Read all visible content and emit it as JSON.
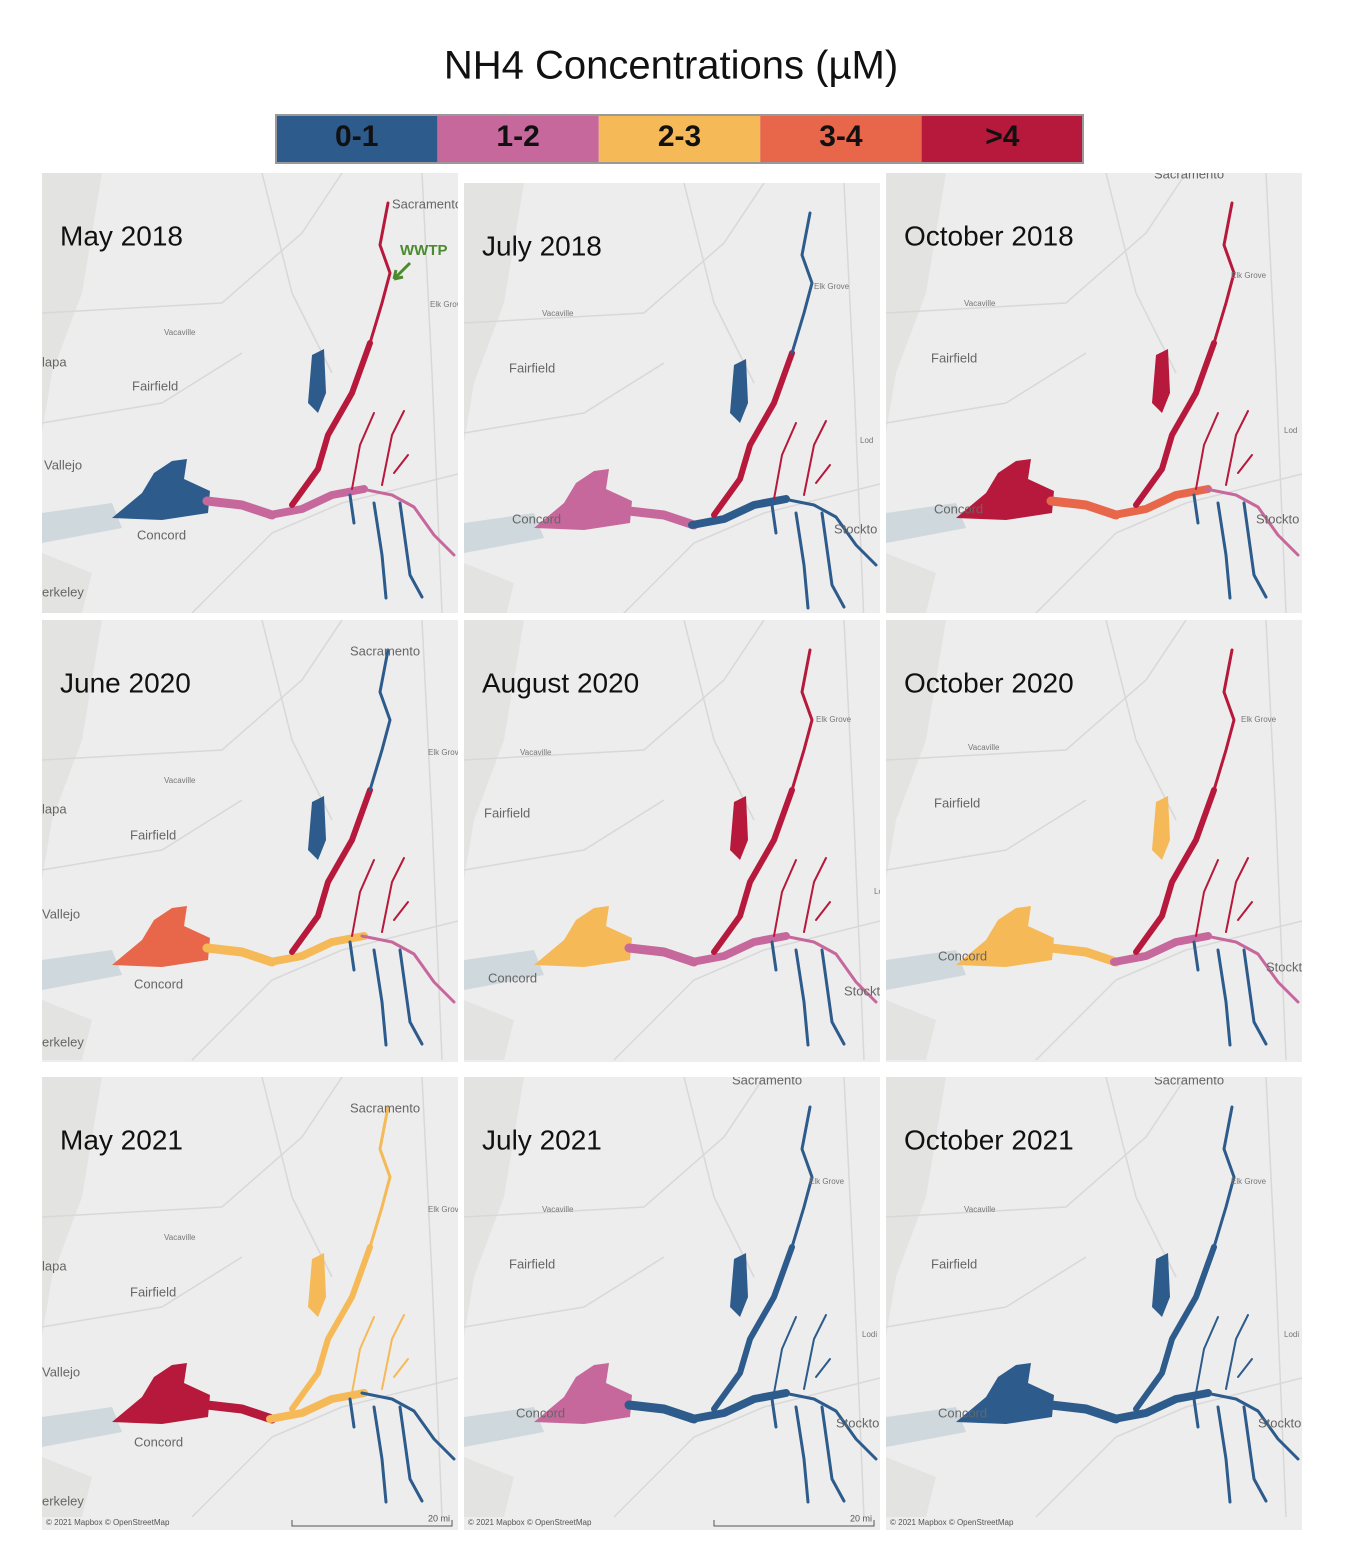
{
  "title": "NH4 Concentrations (µM)",
  "legend": [
    {
      "label": "0-1",
      "color": "#2d5b8b"
    },
    {
      "label": "1-2",
      "color": "#c7689d"
    },
    {
      "label": "2-3",
      "color": "#f6b957"
    },
    {
      "label": "3-4",
      "color": "#e8664a"
    },
    {
      "label": ">4",
      "color": "#b6193b"
    }
  ],
  "panels": [
    {
      "title": "May 2018",
      "places": [
        "Sacramento",
        "Elk Grov",
        "Vacaville",
        "Fairfield",
        "lapa",
        "Vallejo",
        "Concord",
        "erkeley"
      ],
      "annotation": "WWTP",
      "segment_colors": [
        "#2d5b8b",
        "#c7689d",
        "#c7689d",
        "#b6193b",
        "#b6193b",
        "#2d5b8b",
        "#c7689d",
        "#2d5b8b",
        "#b6193b"
      ]
    },
    {
      "title": "July 2018",
      "places": [
        "Elk Grove",
        "Vacaville",
        "Fairfield",
        "Concord",
        "Stockto",
        "Lod"
      ],
      "segment_colors": [
        "#c7689d",
        "#c7689d",
        "#2d5b8b",
        "#b6193b",
        "#2d5b8b",
        "#2d5b8b",
        "#2d5b8b",
        "#2d5b8b",
        "#b6193b"
      ]
    },
    {
      "title": "October 2018",
      "places": [
        "Sacramento",
        "Elk Grove",
        "Vacaville",
        "Fairfield",
        "Concord",
        "Stockto",
        "Lod"
      ],
      "segment_colors": [
        "#b6193b",
        "#e8664a",
        "#e8664a",
        "#b6193b",
        "#b6193b",
        "#b6193b",
        "#c7689d",
        "#2d5b8b",
        "#b6193b"
      ]
    },
    {
      "title": "June 2020",
      "places": [
        "Sacramento",
        "Elk Grov",
        "Vacaville",
        "Fairfield",
        "lapa",
        "Vallejo",
        "Concord",
        "erkeley"
      ],
      "segment_colors": [
        "#e8664a",
        "#f6b957",
        "#f6b957",
        "#b6193b",
        "#2d5b8b",
        "#2d5b8b",
        "#c7689d",
        "#2d5b8b",
        "#b6193b"
      ]
    },
    {
      "title": "August 2020",
      "places": [
        "Elk Grove",
        "Vacaville",
        "Fairfield",
        "Concord",
        "Stockt",
        "Lo"
      ],
      "segment_colors": [
        "#f6b957",
        "#c7689d",
        "#c7689d",
        "#b6193b",
        "#b6193b",
        "#b6193b",
        "#c7689d",
        "#2d5b8b",
        "#b6193b"
      ]
    },
    {
      "title": "October 2020",
      "places": [
        "Elk Grove",
        "Vacaville",
        "Fairfield",
        "Concord",
        "Stockt"
      ],
      "segment_colors": [
        "#f6b957",
        "#f6b957",
        "#c7689d",
        "#b6193b",
        "#b6193b",
        "#f6b957",
        "#c7689d",
        "#2d5b8b",
        "#b6193b"
      ]
    },
    {
      "title": "May 2021",
      "places": [
        "Sacramento",
        "Elk Grov",
        "Vacaville",
        "Fairfield",
        "lapa",
        "Vallejo",
        "Concord",
        "erkeley"
      ],
      "attribution": "© 2021 Mapbox © OpenStreetMap",
      "scale": "20 mi",
      "segment_colors": [
        "#b6193b",
        "#b6193b",
        "#f6b957",
        "#f6b957",
        "#f6b957",
        "#f6b957",
        "#2d5b8b",
        "#2d5b8b",
        "#f6b957"
      ]
    },
    {
      "title": "July 2021",
      "places": [
        "Sacramento",
        "Elk Grove",
        "Vacaville",
        "Fairfield",
        "Concord",
        "Stockto",
        "Lodi"
      ],
      "attribution": "© 2021 Mapbox © OpenStreetMap",
      "scale": "20 mi",
      "segment_colors": [
        "#c7689d",
        "#2d5b8b",
        "#2d5b8b",
        "#2d5b8b",
        "#2d5b8b",
        "#2d5b8b",
        "#2d5b8b",
        "#2d5b8b",
        "#2d5b8b"
      ]
    },
    {
      "title": "October 2021",
      "places": [
        "Sacramento",
        "Elk Grove",
        "Vacaville",
        "Fairfield",
        "Concord",
        "Stockto",
        "Lodi"
      ],
      "attribution": "© 2021 Mapbox © OpenStreetMap",
      "segment_colors": [
        "#2d5b8b",
        "#2d5b8b",
        "#2d5b8b",
        "#2d5b8b",
        "#2d5b8b",
        "#2d5b8b",
        "#2d5b8b",
        "#2d5b8b",
        "#2d5b8b"
      ]
    }
  ]
}
